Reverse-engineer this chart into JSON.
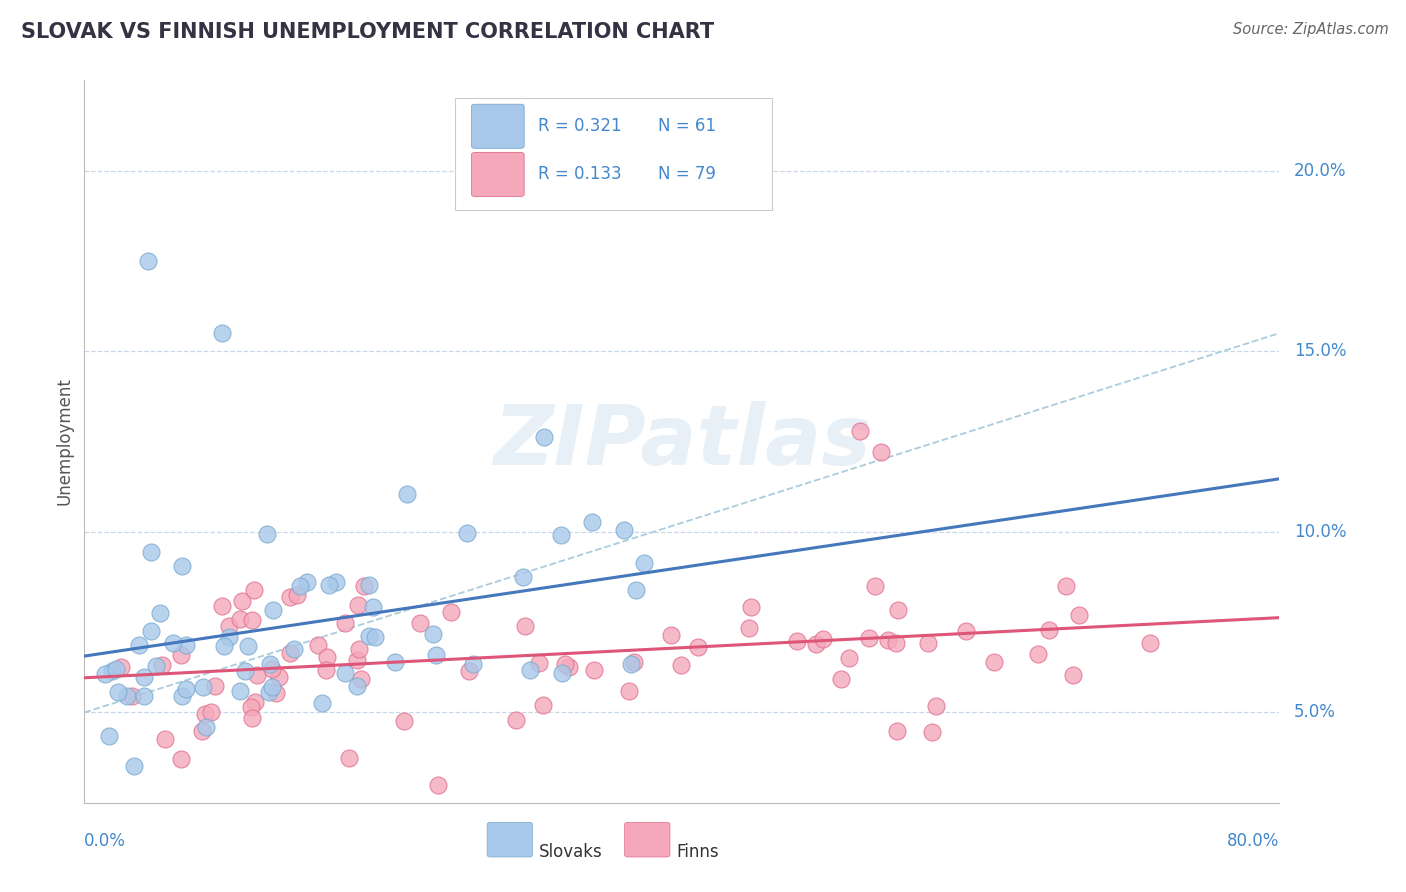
{
  "title": "SLOVAK VS FINNISH UNEMPLOYMENT CORRELATION CHART",
  "source": "Source: ZipAtlas.com",
  "ylabel": "Unemployment",
  "yticks": [
    0.05,
    0.1,
    0.15,
    0.2
  ],
  "ytick_labels": [
    "5.0%",
    "10.0%",
    "15.0%",
    "20.0%"
  ],
  "xtick_left": "0.0%",
  "xtick_right": "80.0%",
  "xlim": [
    0.0,
    0.8
  ],
  "ylim": [
    0.025,
    0.225
  ],
  "slovak_color": "#a8c8ea",
  "slovak_edge_color": "#7aaad0",
  "finn_color": "#f4a8ba",
  "finn_edge_color": "#e07090",
  "slovak_trend_color": "#4477bb",
  "finn_trend_color": "#dd5577",
  "dash_color": "#aaccdd",
  "grid_color": "#c8d8e8",
  "background_color": "#ffffff",
  "title_color": "#333344",
  "axis_label_color": "#4488cc",
  "watermark": "ZIPatlas",
  "slovak_R": "0.321",
  "slovak_N": "61",
  "finn_R": "0.133",
  "finn_N": "79",
  "legend_label_slovak": "Slovaks",
  "legend_label_finn": "Finns",
  "slovak_seed": 42,
  "finn_seed": 123
}
